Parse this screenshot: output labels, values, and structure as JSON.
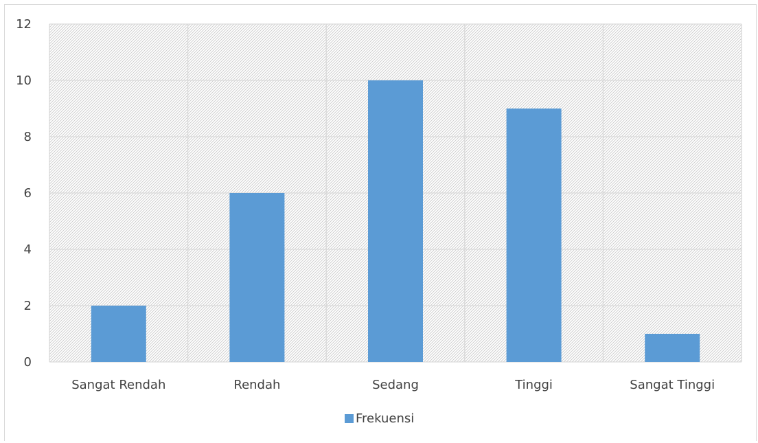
{
  "chart_data": {
    "type": "bar",
    "categories": [
      "Sangat Rendah",
      "Rendah",
      "Sedang",
      "Tinggi",
      "Sangat Tinggi"
    ],
    "series": [
      {
        "name": "Frekuensi",
        "values": [
          2,
          6,
          10,
          9,
          1
        ],
        "color": "#5b9bd5"
      }
    ],
    "ylim": [
      0,
      12
    ],
    "yticks": [
      0,
      2,
      4,
      6,
      8,
      10,
      12
    ],
    "grid": true,
    "plot_background": "hatched",
    "legend_position": "bottom",
    "title": "",
    "xlabel": "",
    "ylabel": ""
  }
}
